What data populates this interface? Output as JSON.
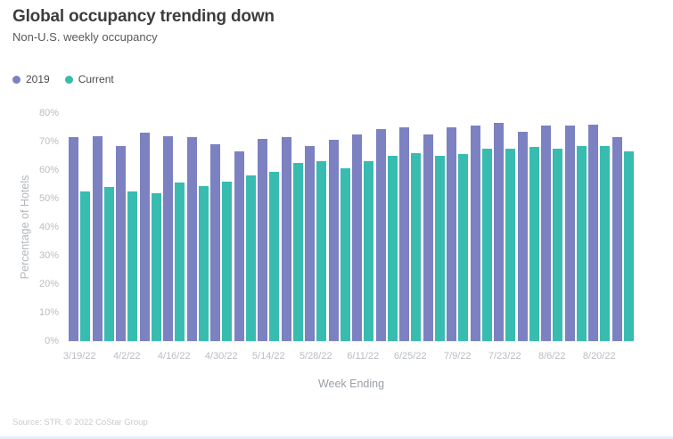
{
  "header": {
    "title": "Global occupancy trending down",
    "subtitle": "Non-U.S. weekly occupancy"
  },
  "legend": [
    {
      "label": "2019",
      "color": "#7c81c1"
    },
    {
      "label": "Current",
      "color": "#38bcb0"
    }
  ],
  "chart_data": {
    "type": "bar",
    "title": "Global occupancy trending down",
    "subtitle": "Non-U.S. weekly occupancy",
    "categories": [
      "3/19/22",
      "3/26/22",
      "4/2/22",
      "4/9/22",
      "4/16/22",
      "4/23/22",
      "4/30/22",
      "5/7/22",
      "5/14/22",
      "5/21/22",
      "5/28/22",
      "6/4/22",
      "6/11/22",
      "6/18/22",
      "6/25/22",
      "7/2/22",
      "7/9/22",
      "7/16/22",
      "7/23/22",
      "7/30/22",
      "8/6/22",
      "8/13/22",
      "8/20/22",
      "8/27/22"
    ],
    "series": [
      {
        "name": "2019",
        "color": "#7c81c1",
        "values": [
          71.5,
          72,
          68.5,
          73,
          72,
          71.5,
          69,
          66.5,
          71,
          71.5,
          68.5,
          70.5,
          72.5,
          74.5,
          75,
          72.5,
          75,
          75.5,
          76.5,
          73.5,
          75.5,
          75.5,
          76,
          71.5
        ]
      },
      {
        "name": "Current",
        "color": "#38bcb0",
        "values": [
          52.5,
          54,
          52.5,
          52,
          55.5,
          54.5,
          56,
          58,
          59.5,
          62.5,
          63,
          60.5,
          63,
          65,
          66,
          65,
          65.5,
          67.5,
          67.5,
          68,
          67.5,
          68.5,
          68.5,
          66.5
        ]
      }
    ],
    "xlabel": "Week Ending",
    "ylabel": "Percentage of Hotels",
    "ylim": [
      0,
      80
    ],
    "yticks": [
      "0%",
      "10%",
      "20%",
      "30%",
      "40%",
      "50%",
      "60%",
      "70%",
      "80%"
    ],
    "x_tick_labels_shown": [
      "3/19/22",
      "4/2/22",
      "4/16/22",
      "4/30/22",
      "5/14/22",
      "5/28/22",
      "6/11/22",
      "6/25/22",
      "7/9/22",
      "7/23/22",
      "8/6/22",
      "8/20/22"
    ],
    "x_tick_interval": 2,
    "grid": false,
    "legend_position": "top-left"
  },
  "footer": {
    "source": "Source: STR. © 2022 CoStar Group"
  }
}
